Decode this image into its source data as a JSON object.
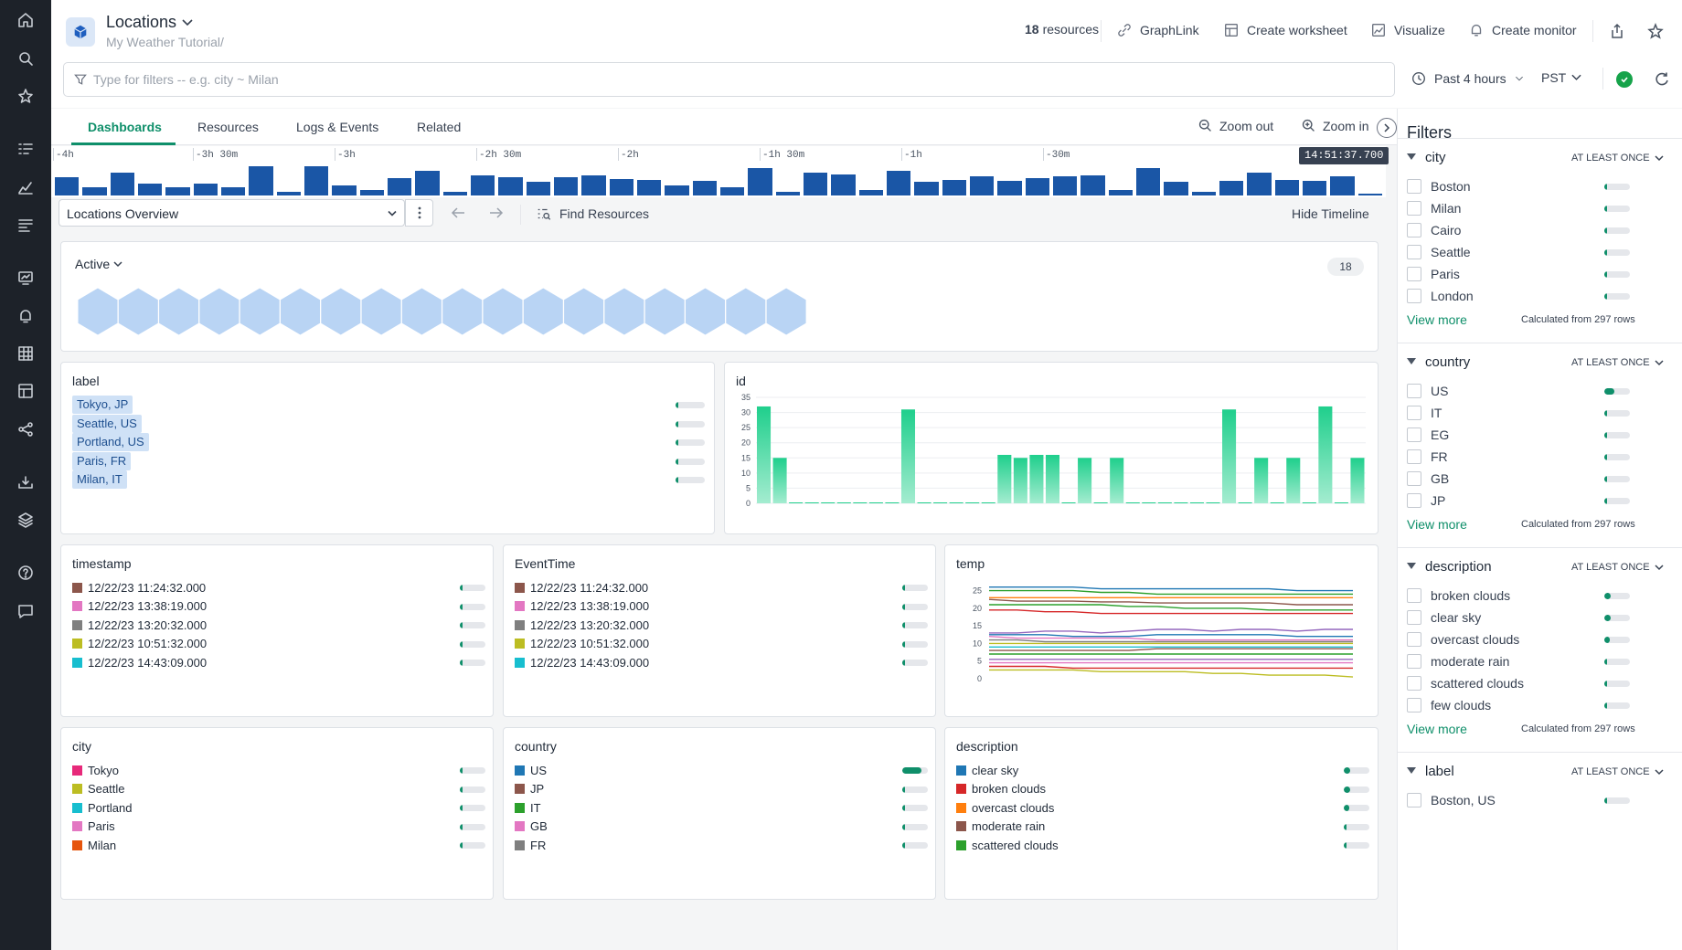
{
  "nav": {
    "icons": [
      "home-icon",
      "search-icon",
      "star-icon",
      "log-explorer-icon",
      "metric-explorer-icon",
      "trace-explorer-icon",
      "dashboard-icon",
      "monitor-icon",
      "dataset-icon",
      "worksheet-icon",
      "graph-icon",
      "data-stream-icon",
      "layers-icon",
      "help-icon",
      "chat-icon"
    ]
  },
  "header": {
    "title": "Locations",
    "subtitle": "My Weather Tutorial/",
    "resources_count": "18",
    "resources_label": "resources",
    "graphlink": "GraphLink",
    "create_worksheet": "Create worksheet",
    "visualize": "Visualize",
    "create_monitor": "Create monitor"
  },
  "filter": {
    "placeholder": "Type for filters -- e.g. city ~ Milan",
    "value": ""
  },
  "time": {
    "range": "Past 4 hours",
    "timezone": "PST"
  },
  "tabs": [
    {
      "label": "Dashboards",
      "active": true
    },
    {
      "label": "Resources"
    },
    {
      "label": "Logs & Events"
    },
    {
      "label": "Related"
    }
  ],
  "zoom": {
    "out": "Zoom out",
    "in": "Zoom in"
  },
  "timeline": {
    "ticks": [
      "-4h",
      "-3h 30m",
      "-3h",
      "-2h 30m",
      "-2h",
      "-1h 30m",
      "-1h",
      "-30m"
    ],
    "current": "14:51:37.700",
    "bars": [
      0.38,
      0.18,
      0.48,
      0.25,
      0.18,
      0.25,
      0.18,
      0.62,
      0.08,
      0.62,
      0.22,
      0.12,
      0.37,
      0.52,
      0.07,
      0.42,
      0.38,
      0.28,
      0.38,
      0.42,
      0.35,
      0.32,
      0.22,
      0.3,
      0.18,
      0.58,
      0.07,
      0.48,
      0.44,
      0.12,
      0.52,
      0.28,
      0.32,
      0.4,
      0.3,
      0.37,
      0.4,
      0.42,
      0.12,
      0.58,
      0.28,
      0.08,
      0.3,
      0.48,
      0.32,
      0.3,
      0.4,
      0.02
    ]
  },
  "controls": {
    "dashboard": "Locations Overview",
    "find_resources": "Find Resources",
    "hide_timeline": "Hide Timeline"
  },
  "active": {
    "label": "Active",
    "count": "18",
    "hex_count": 18
  },
  "label_panel": {
    "title": "label",
    "items": [
      "Tokyo, JP",
      "Seattle, US",
      "Portland, US",
      "Paris, FR",
      "Milan, IT"
    ]
  },
  "id_panel": {
    "title": "id"
  },
  "chart_data": [
    {
      "type": "bar",
      "title": "id",
      "ylim": [
        0,
        35
      ],
      "yticks": [
        "35",
        "30",
        "25",
        "20",
        "15",
        "10",
        "5",
        "0"
      ],
      "values": [
        32,
        15,
        0,
        0,
        0,
        0,
        0,
        0,
        0,
        31,
        0,
        0,
        0,
        0,
        0,
        16,
        15,
        16,
        16,
        0,
        15,
        0,
        15,
        0,
        0,
        0,
        0,
        0,
        0,
        31,
        0,
        15,
        0,
        15,
        0,
        32,
        0,
        15
      ]
    },
    {
      "type": "line",
      "title": "temp",
      "ylim": [
        0,
        28
      ],
      "yticks": [
        "25",
        "20",
        "15",
        "10",
        "5",
        "0"
      ],
      "series": [
        {
          "color": "#1f77b4",
          "values": [
            26,
            26,
            26,
            26,
            25.5,
            25.5,
            25.5,
            25.5,
            25.5,
            25.5,
            25.5,
            25,
            25,
            25
          ]
        },
        {
          "color": "#2ca02c",
          "values": [
            25,
            25,
            25,
            25,
            24.5,
            24.5,
            24,
            24,
            24,
            24,
            24,
            24,
            24,
            24
          ]
        },
        {
          "color": "#ff7f0e",
          "values": [
            23,
            23,
            23,
            23,
            23,
            23,
            23,
            23,
            23,
            23,
            23,
            23,
            23,
            23
          ]
        },
        {
          "color": "#8c564b",
          "values": [
            22.5,
            22,
            22,
            22,
            21.8,
            21.8,
            21.5,
            21.5,
            21.5,
            21.5,
            21.5,
            21,
            21,
            21
          ]
        },
        {
          "color": "#2ca02c",
          "values": [
            21,
            21,
            21,
            21,
            21,
            20.5,
            20.5,
            20,
            20,
            20,
            19.5,
            19.5,
            19.5,
            19.5
          ]
        },
        {
          "color": "#d62728",
          "values": [
            19.5,
            19.5,
            19,
            19,
            18.5,
            18.5,
            18.5,
            18.5,
            18.5,
            18.5,
            18.5,
            18.5,
            18.5,
            18.5
          ]
        },
        {
          "color": "#9467bd",
          "values": [
            13,
            13,
            13.5,
            13.5,
            13,
            13.5,
            14,
            14,
            13.5,
            14,
            14,
            13.5,
            14,
            14
          ]
        },
        {
          "color": "#1f77b4",
          "values": [
            12.5,
            12.5,
            12.5,
            12,
            12,
            12,
            12.5,
            12.5,
            12.5,
            12.5,
            12.5,
            12,
            12,
            12
          ]
        },
        {
          "color": "#e377c2",
          "values": [
            12,
            11.5,
            11.5,
            11.5,
            11.5,
            11.5,
            11,
            11,
            11,
            11,
            11,
            11,
            11,
            11
          ]
        },
        {
          "color": "#7f7f7f",
          "values": [
            11,
            11,
            10.5,
            10.5,
            10.5,
            10.5,
            10.5,
            10.5,
            10.5,
            10.5,
            10.5,
            10.5,
            10.5,
            10.5
          ]
        },
        {
          "color": "#bcbd22",
          "values": [
            10,
            10,
            10,
            10,
            10,
            10,
            10,
            10,
            10,
            10,
            10,
            10,
            10,
            10
          ]
        },
        {
          "color": "#17becf",
          "values": [
            9,
            9,
            9,
            9,
            9,
            9,
            9,
            9,
            9,
            9,
            9,
            9,
            9,
            9
          ]
        },
        {
          "color": "#8c564b",
          "values": [
            8,
            8,
            8,
            8,
            8,
            8,
            8.5,
            8.5,
            8.5,
            8.5,
            8.5,
            8.5,
            8.5,
            8.5
          ]
        },
        {
          "color": "#2ca02c",
          "values": [
            7,
            7,
            7,
            7,
            7,
            7,
            7,
            7,
            7,
            7,
            7,
            7,
            7,
            7
          ]
        },
        {
          "color": "#9467bd",
          "values": [
            5.5,
            5.5,
            5.5,
            5.5,
            5.5,
            5.5,
            5.5,
            5.5,
            5.5,
            5.5,
            5.5,
            5.5,
            5.5,
            5.5
          ]
        },
        {
          "color": "#e377c2",
          "values": [
            4.5,
            4.5,
            4.5,
            4.5,
            4.5,
            4.5,
            4.5,
            4.5,
            4.5,
            4.5,
            4.5,
            4.5,
            4.5,
            4.5
          ]
        },
        {
          "color": "#d62728",
          "values": [
            3.5,
            3.5,
            3.5,
            3,
            3,
            3,
            3,
            3,
            3,
            3,
            3,
            3,
            3,
            3
          ]
        },
        {
          "color": "#bcbd22",
          "values": [
            2.5,
            2.5,
            2.5,
            2.5,
            2,
            2,
            2,
            2,
            1.5,
            1.5,
            1,
            1,
            1,
            0.5
          ]
        }
      ]
    }
  ],
  "timestamp_panel": {
    "title": "timestamp",
    "items": [
      {
        "text": "12/22/23 11:24:32.000",
        "color": "#8c564b"
      },
      {
        "text": "12/22/23 13:38:19.000",
        "color": "#e377c2"
      },
      {
        "text": "12/22/23 13:20:32.000",
        "color": "#7f7f7f"
      },
      {
        "text": "12/22/23 10:51:32.000",
        "color": "#bcbd22"
      },
      {
        "text": "12/22/23 14:43:09.000",
        "color": "#17becf"
      }
    ]
  },
  "eventtime_panel": {
    "title": "EventTime",
    "items": [
      {
        "text": "12/22/23 11:24:32.000",
        "color": "#8c564b"
      },
      {
        "text": "12/22/23 13:38:19.000",
        "color": "#e377c2"
      },
      {
        "text": "12/22/23 13:20:32.000",
        "color": "#7f7f7f"
      },
      {
        "text": "12/22/23 10:51:32.000",
        "color": "#bcbd22"
      },
      {
        "text": "12/22/23 14:43:09.000",
        "color": "#17becf"
      }
    ]
  },
  "temp_panel": {
    "title": "temp"
  },
  "city_panel": {
    "title": "city",
    "items": [
      {
        "text": "Tokyo",
        "color": "#e7297a"
      },
      {
        "text": "Seattle",
        "color": "#bcbd22"
      },
      {
        "text": "Portland",
        "color": "#17becf"
      },
      {
        "text": "Paris",
        "color": "#e377c2"
      },
      {
        "text": "Milan",
        "color": "#e6550d"
      }
    ]
  },
  "country_panel": {
    "title": "country",
    "items": [
      {
        "text": "US",
        "color": "#1f77b4",
        "fill": 0.75
      },
      {
        "text": "JP",
        "color": "#8c564b"
      },
      {
        "text": "IT",
        "color": "#2ca02c"
      },
      {
        "text": "GB",
        "color": "#e377c2"
      },
      {
        "text": "FR",
        "color": "#7f7f7f"
      }
    ]
  },
  "description_panel": {
    "title": "description",
    "items": [
      {
        "text": "clear sky",
        "color": "#1f77b4",
        "fill": 0.25
      },
      {
        "text": "broken clouds",
        "color": "#d62728",
        "fill": 0.25
      },
      {
        "text": "overcast clouds",
        "color": "#ff7f0e",
        "fill": 0.2
      },
      {
        "text": "moderate rain",
        "color": "#8c564b"
      },
      {
        "text": "scattered clouds",
        "color": "#2ca02c"
      }
    ]
  },
  "sidebar": {
    "title": "Filters",
    "at_least_once": "AT LEAST ONCE",
    "view_more": "View more",
    "calculated": "Calculated from 297 rows",
    "sections": [
      {
        "name": "city",
        "items": [
          {
            "label": "Boston"
          },
          {
            "label": "Milan"
          },
          {
            "label": "Cairo"
          },
          {
            "label": "Seattle"
          },
          {
            "label": "Paris"
          },
          {
            "label": "London"
          }
        ]
      },
      {
        "name": "country",
        "items": [
          {
            "label": "US",
            "fill": 0.4
          },
          {
            "label": "IT"
          },
          {
            "label": "EG"
          },
          {
            "label": "FR"
          },
          {
            "label": "GB"
          },
          {
            "label": "JP"
          }
        ]
      },
      {
        "name": "description",
        "items": [
          {
            "label": "broken clouds",
            "fill": 0.25
          },
          {
            "label": "clear sky",
            "fill": 0.25
          },
          {
            "label": "overcast clouds",
            "fill": 0.2
          },
          {
            "label": "moderate rain"
          },
          {
            "label": "scattered clouds"
          },
          {
            "label": "few clouds"
          }
        ]
      },
      {
        "name": "label",
        "items": [
          {
            "label": "Boston, US"
          }
        ]
      }
    ]
  }
}
